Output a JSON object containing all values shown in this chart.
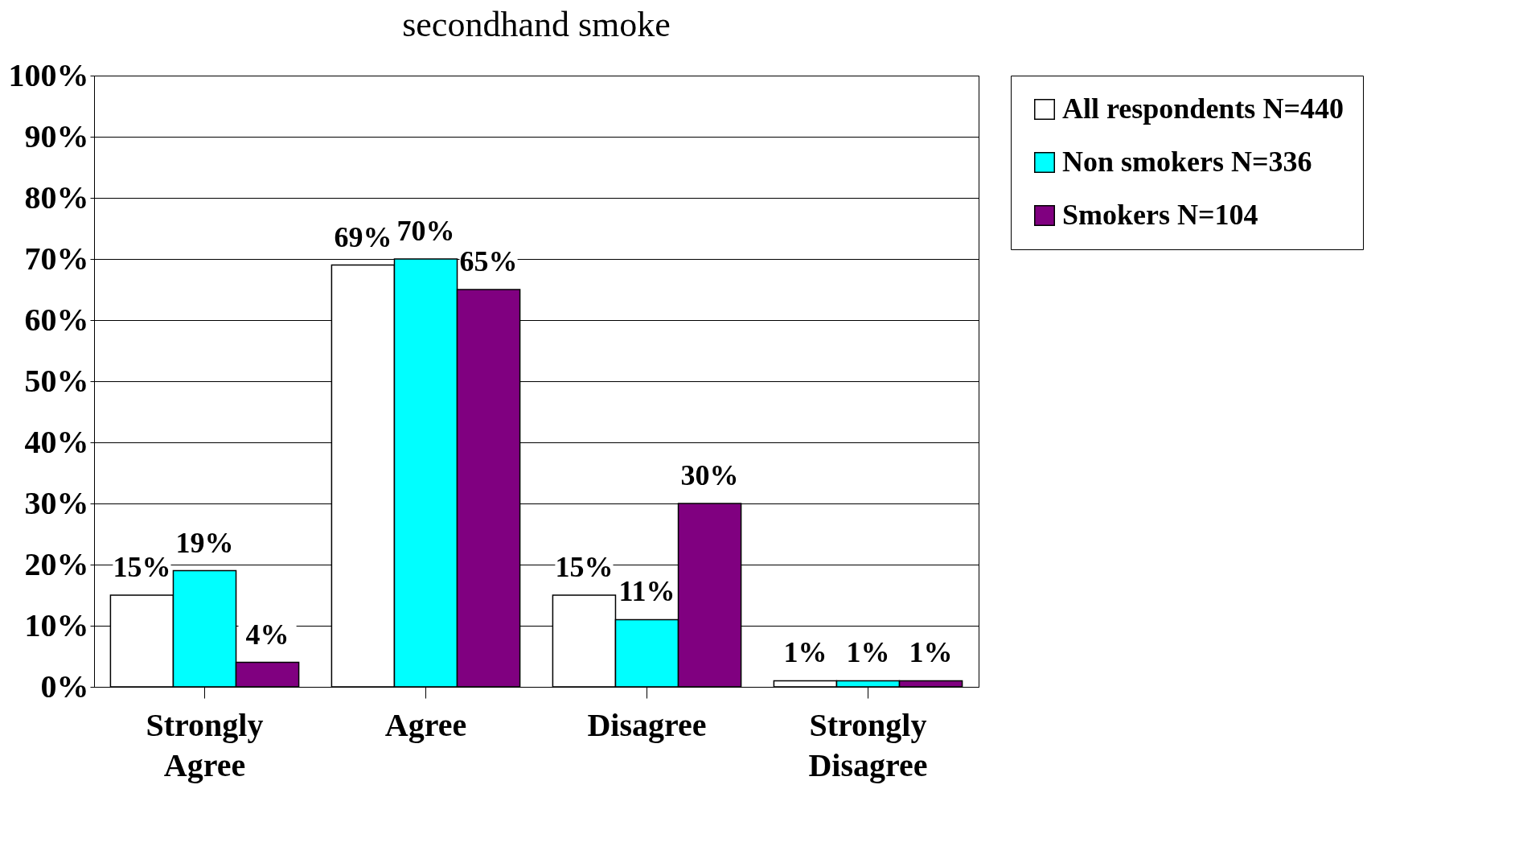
{
  "chart_data": {
    "type": "bar",
    "title": "secondhand smoke",
    "categories": [
      "Strongly Agree",
      "Agree",
      "Disagree",
      "Strongly Disagree"
    ],
    "series": [
      {
        "name": "All respondents N=440",
        "color": "#ffffff",
        "values": [
          15,
          69,
          15,
          1
        ],
        "value_labels": [
          "15%",
          "69%",
          "15%",
          "1%"
        ]
      },
      {
        "name": "Non smokers N=336",
        "color": "#00ffff",
        "values": [
          19,
          70,
          11,
          1
        ],
        "value_labels": [
          "19%",
          "70%",
          "11%",
          "1%"
        ]
      },
      {
        "name": "Smokers N=104",
        "color": "#800080",
        "values": [
          4,
          65,
          30,
          1
        ],
        "value_labels": [
          "4%",
          "65%",
          "30%",
          "1%"
        ]
      }
    ],
    "ylim": [
      0,
      100
    ],
    "yticks": [
      {
        "value": 0,
        "label": "0%"
      },
      {
        "value": 10,
        "label": "10%"
      },
      {
        "value": 20,
        "label": "20%"
      },
      {
        "value": 30,
        "label": "30%"
      },
      {
        "value": 40,
        "label": "40%"
      },
      {
        "value": 50,
        "label": "50%"
      },
      {
        "value": 60,
        "label": "60%"
      },
      {
        "value": 70,
        "label": "70%"
      },
      {
        "value": 80,
        "label": "80%"
      },
      {
        "value": 90,
        "label": "90%"
      },
      {
        "value": 100,
        "label": "100%"
      }
    ],
    "grid": "y",
    "legend": "right"
  }
}
